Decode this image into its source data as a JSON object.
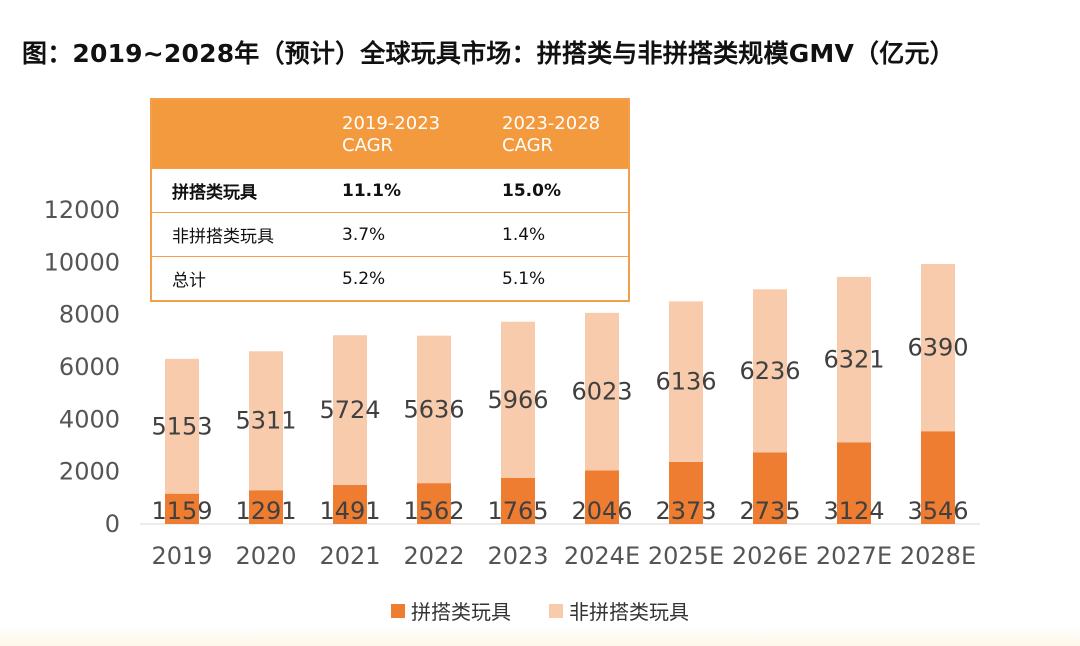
{
  "title": "图：2019~2028年（预计）全球玩具市场：拼搭类与非拼搭类规模GMV（亿元）",
  "colors": {
    "lego": "#ee7d31",
    "nonlego": "#f8cbad",
    "table_header": "#f39a3f",
    "table_border": "#f4a04b"
  },
  "cagr_table": {
    "headers": [
      "",
      "2019-2023\nCAGR",
      "2023-2028\nCAGR"
    ],
    "rows": [
      {
        "label": "拼搭类玩具",
        "c1": "11.1%",
        "c2": "15.0%"
      },
      {
        "label": "非拼搭类玩具",
        "c1": "3.7%",
        "c2": "1.4%"
      },
      {
        "label": "总计",
        "c1": "5.2%",
        "c2": "5.1%"
      }
    ]
  },
  "chart_data": {
    "type": "bar",
    "stacked": true,
    "title": "2019~2028年（预计）全球玩具市场：拼搭类与非拼搭类规模GMV（亿元）",
    "categories": [
      "2019",
      "2020",
      "2021",
      "2022",
      "2023",
      "2024E",
      "2025E",
      "2026E",
      "2027E",
      "2028E"
    ],
    "series": [
      {
        "name": "拼搭类玩具",
        "values": [
          1159,
          1291,
          1491,
          1562,
          1765,
          2046,
          2373,
          2735,
          3124,
          3546
        ]
      },
      {
        "name": "非拼搭类玩具",
        "values": [
          5153,
          5311,
          5724,
          5636,
          5966,
          6023,
          6136,
          6236,
          6321,
          6390
        ]
      }
    ],
    "y_ticks": [
      0,
      2000,
      4000,
      6000,
      8000,
      10000,
      12000
    ],
    "ylim": [
      0,
      12000
    ],
    "xlabel": "",
    "ylabel": "",
    "legend_position": "bottom"
  },
  "legend": [
    {
      "label": "拼搭类玩具"
    },
    {
      "label": "非拼搭类玩具"
    }
  ]
}
